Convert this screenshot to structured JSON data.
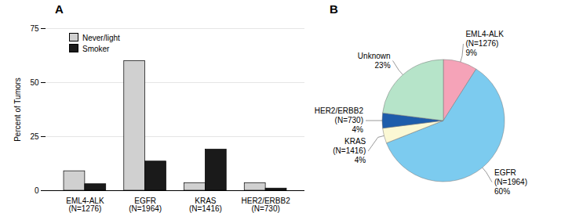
{
  "chart_data": [
    {
      "type": "bar",
      "title": "A",
      "categories": [
        "EML4-ALK\n(N=1276)",
        "EGFR\n(N=1964)",
        "KRAS\n(N=1416)",
        "HER2/ERBB2\n(N=730)"
      ],
      "series": [
        {
          "name": "Never/light",
          "color": "#d0d0d0",
          "values": [
            9,
            60,
            3.5,
            3.5
          ]
        },
        {
          "name": "Smoker",
          "color": "#1a1a1a",
          "values": [
            3,
            13.5,
            19,
            1
          ]
        }
      ],
      "ylabel": "Percent of Tumors",
      "ylim": [
        0,
        75
      ],
      "yticks": [
        0,
        25,
        50,
        75
      ],
      "grid": true,
      "legend": "top-left"
    },
    {
      "type": "pie",
      "title": "B",
      "categories": [
        "EML4-ALK\n(N=1276)",
        "EGFR\n(N=1964)",
        "KRAS\n(N=1416)",
        "HER2/ERBB2\n(N=730)",
        "Unknown"
      ],
      "values": [
        9,
        60,
        4,
        4,
        23
      ],
      "value_labels": [
        "9%",
        "60%",
        "4%",
        "4%",
        "23%"
      ],
      "colors": [
        "#f5a3b8",
        "#7ccbef",
        "#fbf8d4",
        "#1e5dab",
        "#b6e4c9"
      ],
      "data_labels": true
    }
  ]
}
